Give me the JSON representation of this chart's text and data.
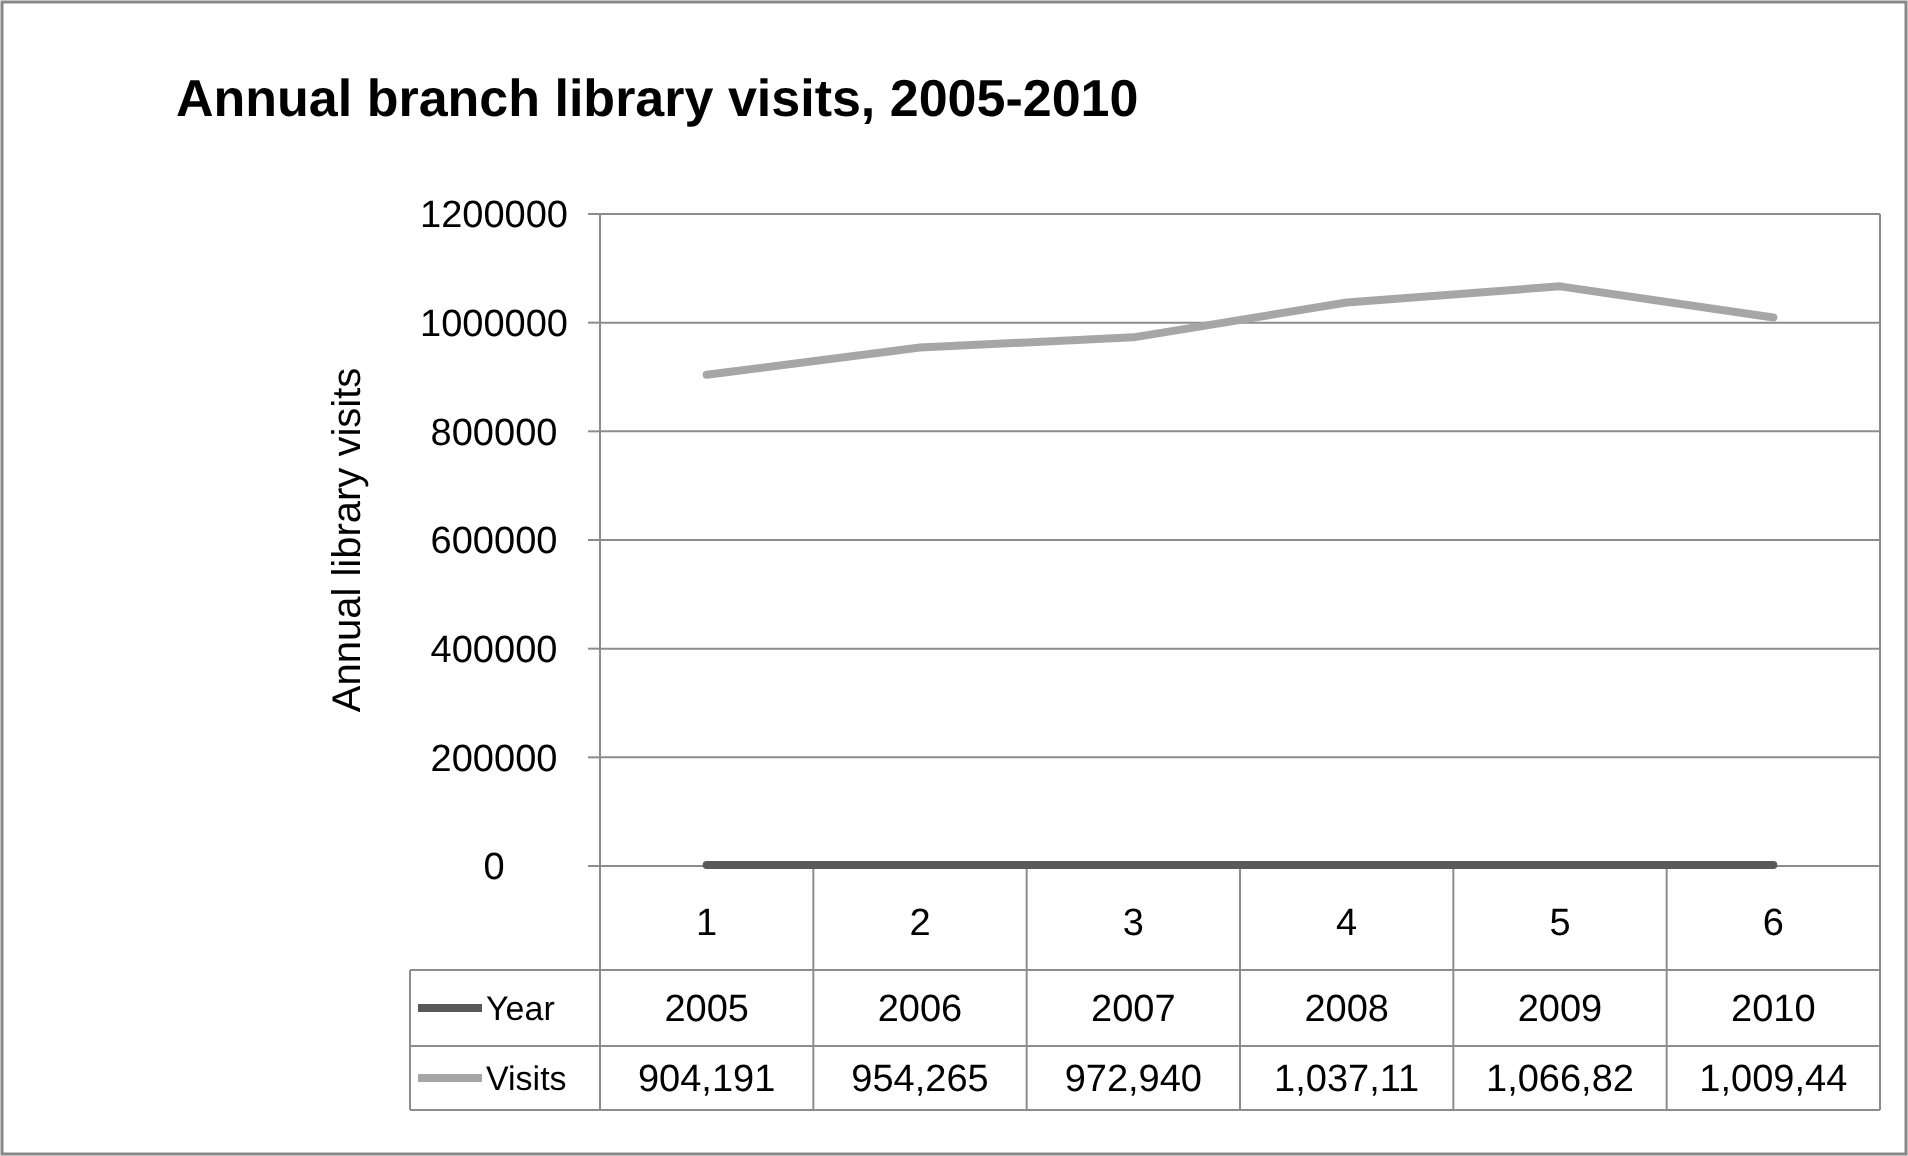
{
  "chart_data": {
    "type": "line",
    "title": "Annual branch library visits, 2005-2010",
    "ylabel": "Annual library visits",
    "categories": [
      "1",
      "2",
      "3",
      "4",
      "5",
      "6"
    ],
    "series": [
      {
        "name": "Year",
        "color": "#595959",
        "values": [
          2005,
          2006,
          2007,
          2008,
          2009,
          2010
        ],
        "value_labels": [
          "2005",
          "2006",
          "2007",
          "2008",
          "2009",
          "2010"
        ]
      },
      {
        "name": "Visits",
        "color": "#a6a6a6",
        "values": [
          904191,
          954265,
          972940,
          1037110,
          1066820,
          1009440
        ],
        "value_labels": [
          "904,191",
          "954,265",
          "972,940",
          "1,037,11",
          "1,066,82",
          "1,009,44"
        ]
      }
    ],
    "ylim": [
      0,
      1200000
    ],
    "yticks": [
      0,
      200000,
      400000,
      600000,
      800000,
      1000000,
      1200000
    ],
    "grid": "y",
    "legend": "bottom"
  }
}
